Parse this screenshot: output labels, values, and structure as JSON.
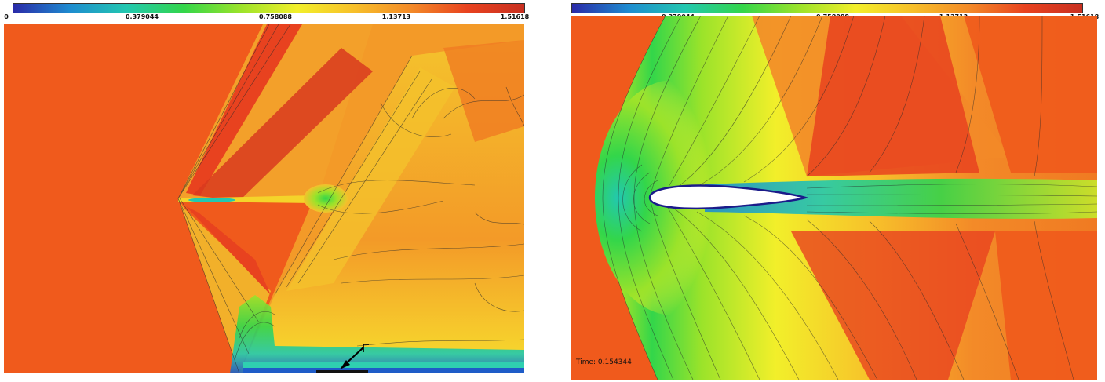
{
  "colorbar": {
    "stops": [
      "#2a2aa8",
      "#1e8cd0",
      "#22c8b0",
      "#33d64a",
      "#9be32a",
      "#f2ef2a",
      "#f7c02a",
      "#f38a28",
      "#e8421f",
      "#c83020"
    ],
    "ticks": [
      "0",
      "0.379044",
      "0.758088",
      "1.13713",
      "1.51618"
    ]
  },
  "left": {
    "background": "#f05a1c"
  },
  "right": {
    "background": "#f05a1c",
    "time_label": "Time: 0.154344"
  }
}
